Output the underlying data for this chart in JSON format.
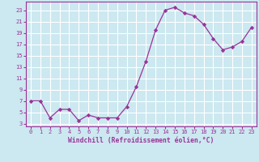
{
  "x": [
    0,
    1,
    2,
    3,
    4,
    5,
    6,
    7,
    8,
    9,
    10,
    11,
    12,
    13,
    14,
    15,
    16,
    17,
    18,
    19,
    20,
    21,
    22,
    23
  ],
  "y": [
    7,
    7,
    4,
    5.5,
    5.5,
    3.5,
    4.5,
    4,
    4,
    4,
    6,
    9.5,
    14,
    19.5,
    23,
    23.5,
    22.5,
    22,
    20.5,
    18,
    16,
    16.5,
    17.5,
    20
  ],
  "line_color": "#993399",
  "marker": "D",
  "marker_size": 2.2,
  "bg_color": "#cce8f0",
  "grid_color": "#ffffff",
  "xlabel": "Windchill (Refroidissement éolien,°C)",
  "xlabel_color": "#993399",
  "tick_color": "#993399",
  "ylim": [
    2.5,
    24.5
  ],
  "xlim": [
    -0.5,
    23.5
  ],
  "yticks": [
    3,
    5,
    7,
    9,
    11,
    13,
    15,
    17,
    19,
    21,
    23
  ],
  "xticks": [
    0,
    1,
    2,
    3,
    4,
    5,
    6,
    7,
    8,
    9,
    10,
    11,
    12,
    13,
    14,
    15,
    16,
    17,
    18,
    19,
    20,
    21,
    22,
    23
  ]
}
